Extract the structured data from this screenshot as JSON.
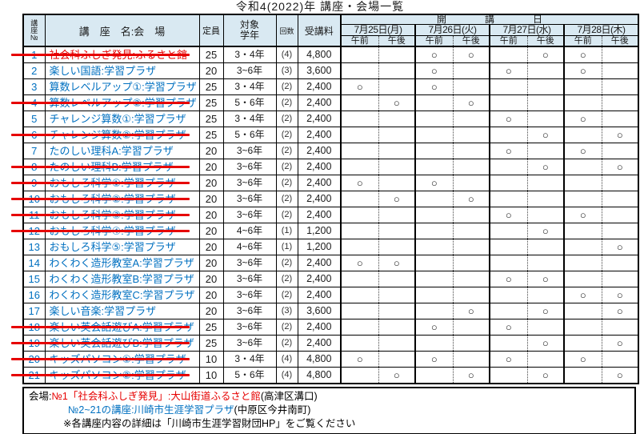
{
  "title": "令和4(2022)年 講座・会場一覧",
  "colors": {
    "accent_blue": "#0070c0",
    "accent_red": "#e60000",
    "header_bg": "#d9e9f2"
  },
  "circle": "○",
  "header": {
    "no": [
      "講",
      "座",
      "№"
    ],
    "name": "講　座　名:会　場",
    "capacity": "定員",
    "grade": [
      "対象",
      "学年"
    ],
    "sessions": "回数",
    "fee": "受講料",
    "schedule": "開　　　　講　　　　日",
    "dates": [
      "7月25日(月)",
      "7月26日(火)",
      "7月27日(水)",
      "7月28日(木)"
    ],
    "am": "午前",
    "pm": "午後"
  },
  "rows": [
    {
      "no": "1",
      "name": "社会科ふしぎ発見:ふるさと館",
      "capacity": "25",
      "grade": "3・4年",
      "sessions": "(4)",
      "fee": "4,800",
      "struck": true,
      "name_red": true,
      "slots": [
        0,
        0,
        1,
        1,
        0,
        1,
        1,
        0
      ]
    },
    {
      "no": "2",
      "name": "楽しい国語:学習プラザ",
      "capacity": "20",
      "grade": "3~6年",
      "sessions": "(3)",
      "fee": "3,600",
      "struck": false,
      "name_red": false,
      "slots": [
        0,
        0,
        1,
        0,
        1,
        0,
        1,
        0
      ]
    },
    {
      "no": "3",
      "name": "算数レベルアップ①:学習プラザ",
      "capacity": "25",
      "grade": "3・4年",
      "sessions": "(2)",
      "fee": "2,400",
      "struck": false,
      "name_red": false,
      "slots": [
        1,
        0,
        1,
        0,
        0,
        0,
        0,
        0
      ]
    },
    {
      "no": "4",
      "name": "算数レベルアップ②:学習プラザ",
      "capacity": "25",
      "grade": "5・6年",
      "sessions": "(2)",
      "fee": "2,400",
      "struck": true,
      "name_red": false,
      "slots": [
        0,
        1,
        0,
        1,
        0,
        0,
        0,
        0
      ]
    },
    {
      "no": "5",
      "name": "チャレンジ算数①:学習プラザ",
      "capacity": "25",
      "grade": "3・4年",
      "sessions": "(2)",
      "fee": "2,400",
      "struck": false,
      "name_red": false,
      "slots": [
        0,
        0,
        0,
        0,
        1,
        0,
        1,
        0
      ]
    },
    {
      "no": "6",
      "name": "チャレンジ算数②:学習プラザ",
      "capacity": "25",
      "grade": "5・6年",
      "sessions": "(2)",
      "fee": "2,400",
      "struck": true,
      "name_red": false,
      "slots": [
        0,
        0,
        0,
        0,
        0,
        1,
        0,
        1
      ]
    },
    {
      "no": "7",
      "name": "たのしい理科A:学習プラザ",
      "capacity": "20",
      "grade": "3~6年",
      "sessions": "(2)",
      "fee": "2,400",
      "struck": false,
      "name_red": false,
      "slots": [
        0,
        0,
        0,
        0,
        1,
        0,
        1,
        0
      ]
    },
    {
      "no": "8",
      "name": "たのしい理科B:学習プラザ",
      "capacity": "20",
      "grade": "3~6年",
      "sessions": "(2)",
      "fee": "2,400",
      "struck": true,
      "name_red": false,
      "slots": [
        0,
        0,
        0,
        0,
        0,
        1,
        0,
        1
      ]
    },
    {
      "no": "9",
      "name": "おもしろ科学①:学習プラザ",
      "capacity": "20",
      "grade": "3~6年",
      "sessions": "(2)",
      "fee": "2,400",
      "struck": true,
      "name_red": false,
      "slots": [
        1,
        0,
        1,
        0,
        0,
        0,
        0,
        0
      ]
    },
    {
      "no": "10",
      "name": "おもしろ科学②:学習プラザ",
      "capacity": "20",
      "grade": "3~6年",
      "sessions": "(2)",
      "fee": "2,400",
      "struck": true,
      "name_red": false,
      "slots": [
        0,
        1,
        0,
        1,
        0,
        0,
        0,
        0
      ]
    },
    {
      "no": "11",
      "name": "おもしろ科学③:学習プラザ",
      "capacity": "20",
      "grade": "3~6年",
      "sessions": "(2)",
      "fee": "2,400",
      "struck": true,
      "name_red": false,
      "slots": [
        0,
        0,
        0,
        0,
        1,
        0,
        1,
        0
      ]
    },
    {
      "no": "12",
      "name": "おもしろ科学④:学習プラザ",
      "capacity": "20",
      "grade": "4~6年",
      "sessions": "(1)",
      "fee": "1,200",
      "struck": true,
      "name_red": false,
      "slots": [
        0,
        0,
        0,
        0,
        0,
        1,
        0,
        0
      ]
    },
    {
      "no": "13",
      "name": "おもしろ科学⑤:学習プラザ",
      "capacity": "20",
      "grade": "4~6年",
      "sessions": "(1)",
      "fee": "1,200",
      "struck": false,
      "name_red": false,
      "slots": [
        0,
        0,
        0,
        0,
        0,
        0,
        0,
        1
      ]
    },
    {
      "no": "14",
      "name": "わくわく造形教室A:学習プラザ",
      "capacity": "20",
      "grade": "3~6年",
      "sessions": "(2)",
      "fee": "2,400",
      "struck": false,
      "name_red": false,
      "slots": [
        1,
        1,
        0,
        0,
        0,
        0,
        0,
        0
      ]
    },
    {
      "no": "15",
      "name": "わくわく造形教室B:学習プラザ",
      "capacity": "20",
      "grade": "3~6年",
      "sessions": "(2)",
      "fee": "2,400",
      "struck": false,
      "name_red": false,
      "slots": [
        0,
        0,
        0,
        0,
        1,
        1,
        0,
        0
      ]
    },
    {
      "no": "16",
      "name": "わくわく造形教室C:学習プラザ",
      "capacity": "20",
      "grade": "3~6年",
      "sessions": "(2)",
      "fee": "2,400",
      "struck": false,
      "name_red": false,
      "slots": [
        0,
        0,
        0,
        0,
        0,
        0,
        1,
        1
      ]
    },
    {
      "no": "17",
      "name": "楽しい音楽:学習プラザ",
      "capacity": "20",
      "grade": "3~6年",
      "sessions": "(3)",
      "fee": "3,600",
      "struck": false,
      "name_red": false,
      "slots": [
        0,
        0,
        0,
        1,
        0,
        1,
        0,
        1
      ]
    },
    {
      "no": "18",
      "name": "楽しい英会話遊びA:学習プラザ",
      "capacity": "25",
      "grade": "3~6年",
      "sessions": "(2)",
      "fee": "2,400",
      "struck": true,
      "name_red": false,
      "slots": [
        0,
        0,
        1,
        0,
        1,
        0,
        0,
        0
      ]
    },
    {
      "no": "19",
      "name": "楽しい英会話遊びB:学習プラザ",
      "capacity": "25",
      "grade": "3~6年",
      "sessions": "(2)",
      "fee": "2,400",
      "struck": true,
      "name_red": false,
      "slots": [
        0,
        0,
        0,
        0,
        0,
        1,
        0,
        1
      ]
    },
    {
      "no": "20",
      "name": "キッズパソコン①:学習プラザ",
      "capacity": "10",
      "grade": "3・4年",
      "sessions": "(4)",
      "fee": "4,800",
      "struck": true,
      "name_red": false,
      "slots": [
        1,
        0,
        1,
        0,
        1,
        0,
        1,
        0
      ]
    },
    {
      "no": "21",
      "name": "キッズパソコン②:学習プラザ",
      "capacity": "10",
      "grade": "5・6年",
      "sessions": "(4)",
      "fee": "4,800",
      "struck": true,
      "name_red": false,
      "slots": [
        0,
        1,
        0,
        1,
        0,
        1,
        0,
        1
      ]
    }
  ],
  "footer": {
    "label": "会場:",
    "line1_red": "№1「社会科ふしぎ発見」:大山街道ふるさと館",
    "line1_black": "(高津区溝口)",
    "line2_blue": "№2~21の講座:川崎市生涯学習プラザ",
    "line2_black": "(中原区今井南町)",
    "line3": "※各講座内容の詳細は「川崎市生涯学習財団HP」をご覧ください"
  }
}
